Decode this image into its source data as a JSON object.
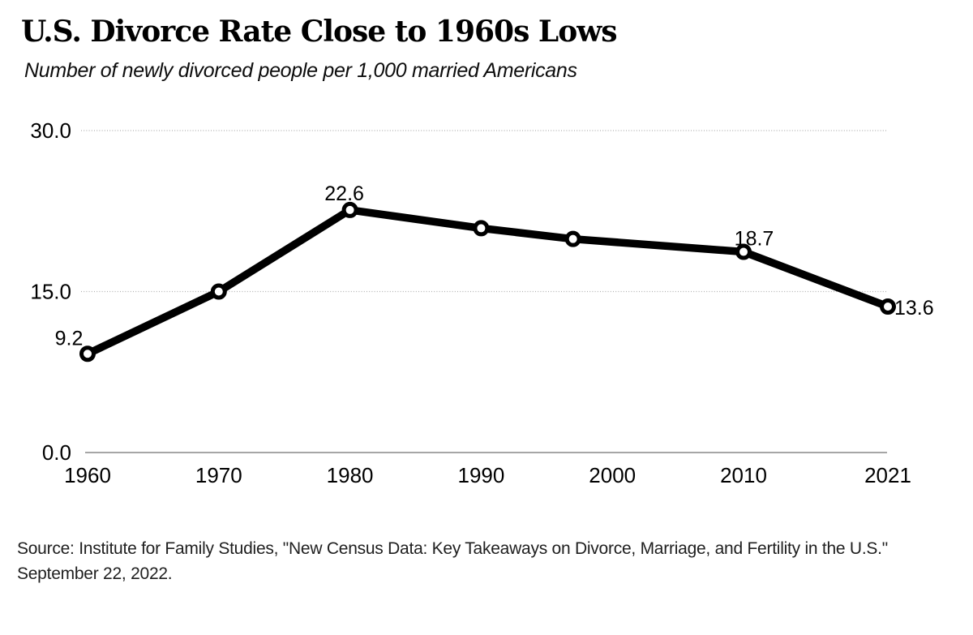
{
  "chart_data": {
    "type": "line",
    "title": "U.S. Divorce Rate Close to 1960s Lows",
    "subtitle": "Number of newly divorced people per 1,000 married Americans",
    "xlabel": "",
    "ylabel": "",
    "xlim": [
      1960,
      2021
    ],
    "ylim": [
      0,
      30
    ],
    "grid": "horizontal dotted gridlines at 15.0 and 30.0, solid baseline at 0.0",
    "legend_position": "none",
    "x_ticks": [
      {
        "year": 1960,
        "label": "1960"
      },
      {
        "year": 1970,
        "label": "1970"
      },
      {
        "year": 1980,
        "label": "1980"
      },
      {
        "year": 1990,
        "label": "1990"
      },
      {
        "year": 2000,
        "label": "2000"
      },
      {
        "year": 2010,
        "label": "2010"
      },
      {
        "year": 2021,
        "label": "2021"
      }
    ],
    "y_ticks": [
      {
        "value": 30,
        "label": "30.0"
      },
      {
        "value": 15,
        "label": "15.0"
      },
      {
        "value": 0,
        "label": "0.0"
      }
    ],
    "series": [
      {
        "name": "Newly divorced people per 1,000 married Americans",
        "color": "#000000",
        "marker": "open-circle",
        "points": [
          {
            "year": 1960,
            "value": 9.2,
            "label": "9.2",
            "label_anchor": "middle",
            "label_dx": -23,
            "label_dy": -11
          },
          {
            "year": 1970,
            "value": 15.0
          },
          {
            "year": 1980,
            "value": 22.6,
            "label": "22.6",
            "label_anchor": "middle",
            "label_dx": -7,
            "label_dy": -12
          },
          {
            "year": 1990,
            "value": 20.9
          },
          {
            "year": 1997,
            "value": 19.9
          },
          {
            "year": 2010,
            "value": 18.7,
            "label": "18.7",
            "label_anchor": "middle",
            "label_dx": 13,
            "label_dy": -8
          },
          {
            "year": 2021,
            "value": 13.6,
            "label": "13.6",
            "label_anchor": "start",
            "label_dx": 8,
            "label_dy": 10
          }
        ]
      }
    ]
  },
  "footer": {
    "source_line1": "Source: Institute for Family Studies, \"New Census Data: Key Takeaways on Divorce, Marriage, and Fertility in the U.S.\"",
    "source_line2": "September 22, 2022."
  },
  "colors": {
    "line": "#000000",
    "marker_fill": "#ffffff",
    "marker_stroke": "#000000",
    "gridline": "#b0b0b0",
    "axis_line": "#a6a6a6",
    "text": "#000000"
  }
}
